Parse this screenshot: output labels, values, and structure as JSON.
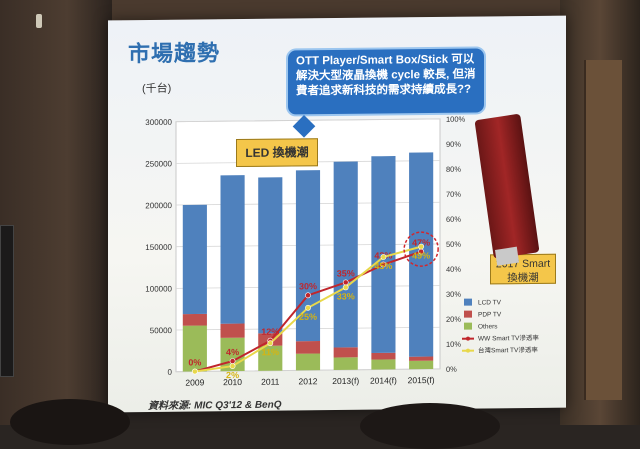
{
  "slide": {
    "title": "市場趨勢",
    "unit": "(千台)",
    "callout": "OTT Player/Smart Box/Stick 可以解決大型液晶換機 cycle 較長, 但消費者追求新科技的需求持續成長??",
    "led_label": "LED 換機潮",
    "smart_label_line1": "2017 Smart",
    "smart_label_line2": "換機潮",
    "source": "資料來源: MIC Q3'12 & BenQ"
  },
  "chart_data": {
    "type": "bar",
    "categories": [
      "2009",
      "2010",
      "2011",
      "2012",
      "2013(f)",
      "2014(f)",
      "2015(f)"
    ],
    "ylim": [
      0,
      300000
    ],
    "ylim_right": [
      0,
      100
    ],
    "y_ticks": [
      "0",
      "50000",
      "100000",
      "150000",
      "200000",
      "250000",
      "300000"
    ],
    "y2_ticks": [
      "0%",
      "10%",
      "20%",
      "30%",
      "40%",
      "50%",
      "60%",
      "70%",
      "80%",
      "90%",
      "100%"
    ],
    "series": [
      {
        "name": "Others",
        "color": "#9bbb59",
        "values": [
          55000,
          40000,
          30000,
          20000,
          15000,
          12000,
          10000
        ]
      },
      {
        "name": "PDP TV",
        "color": "#c0504d",
        "values": [
          14000,
          17000,
          15000,
          15000,
          12000,
          8000,
          5000
        ]
      },
      {
        "name": "LCD TV",
        "color": "#4f81bd",
        "values": [
          131000,
          178000,
          187000,
          205000,
          223000,
          236000,
          245000
        ]
      }
    ],
    "lines": [
      {
        "name": "WW Smart TV滲透率",
        "color": "#c0262c",
        "values": [
          0,
          4,
          12,
          30,
          35,
          42,
          47
        ],
        "labels": [
          "0%",
          "4%",
          "12%",
          "30%",
          "35%",
          "42%",
          "47%"
        ]
      },
      {
        "name": "台灣Smart TV滲透率",
        "color": "#e8d84a",
        "values": [
          0,
          2,
          11,
          25,
          33,
          45,
          49
        ],
        "labels": [
          "",
          "2%",
          "11%",
          "25%",
          "33%",
          "45%",
          "49%"
        ]
      }
    ]
  },
  "legend": [
    {
      "label": "LCD TV",
      "color": "#4f81bd",
      "kind": "box"
    },
    {
      "label": "PDP TV",
      "color": "#c0504d",
      "kind": "box"
    },
    {
      "label": "Others",
      "color": "#9bbb59",
      "kind": "box"
    },
    {
      "label": "WW Smart TV滲透率",
      "color": "#c0262c",
      "kind": "line"
    },
    {
      "label": "台灣Smart TV滲透率",
      "color": "#e8d84a",
      "kind": "line"
    }
  ]
}
